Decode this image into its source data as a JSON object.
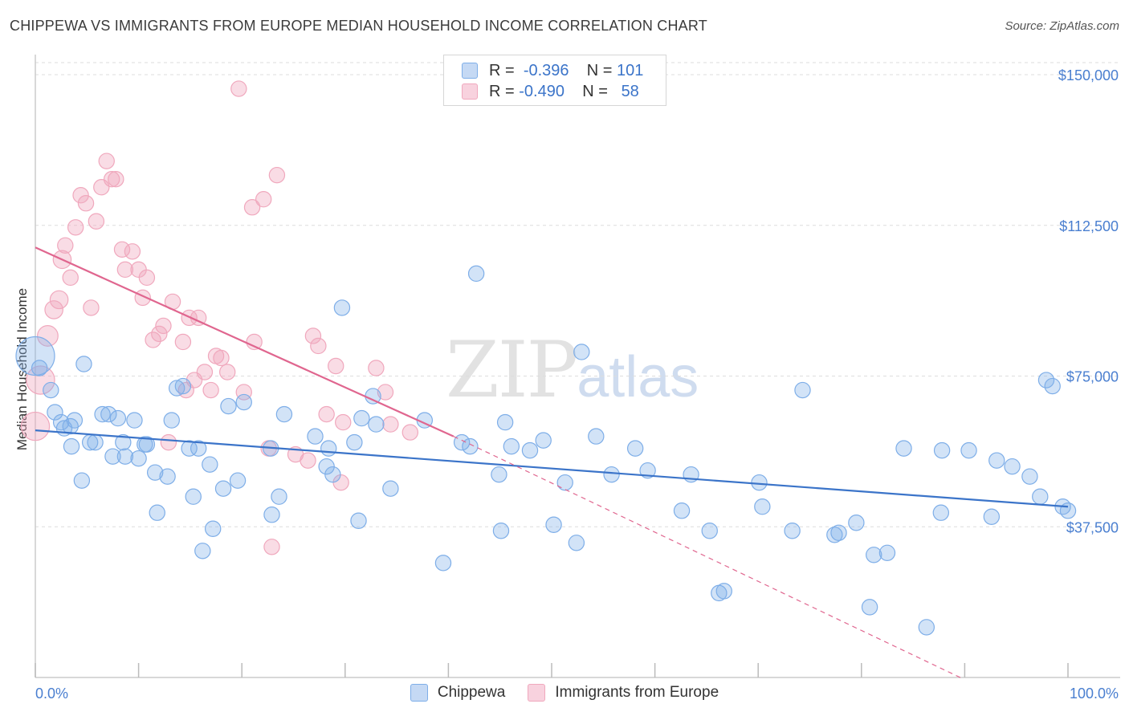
{
  "header": {
    "title": "CHIPPEWA VS IMMIGRANTS FROM EUROPE MEDIAN HOUSEHOLD INCOME CORRELATION CHART",
    "source": "Source: ZipAtlas.com"
  },
  "watermark": {
    "zip": "ZIP",
    "atlas": "atlas"
  },
  "legend": {
    "rows": [
      {
        "r_label": "R =",
        "r_value": "-0.396",
        "n_label": "N =",
        "n_value": "101",
        "color": "#7eaee8"
      },
      {
        "r_label": "R =",
        "r_value": "-0.490",
        "n_label": "N =",
        "n_value": "58",
        "color": "#f0a8bd"
      }
    ]
  },
  "bottom_legend": {
    "series1": "Chippewa",
    "series2": "Immigrants from Europe"
  },
  "chart_data": {
    "type": "scatter",
    "title": "CHIPPEWA VS IMMIGRANTS FROM EUROPE MEDIAN HOUSEHOLD INCOME CORRELATION CHART",
    "xlabel": "",
    "ylabel": "Median Household Income",
    "xlim": [
      0,
      100
    ],
    "ylim": [
      0,
      153000
    ],
    "x_tick_labels": [
      "0.0%",
      "100.0%"
    ],
    "y_ticks": [
      37500,
      75000,
      112500,
      150000
    ],
    "y_tick_labels": [
      "$37,500",
      "$75,000",
      "$112,500",
      "$150,000"
    ],
    "grid": true,
    "legend_position": "top-center",
    "series": [
      {
        "name": "Chippewa",
        "color": "#7eaee8",
        "line_color": "#3b74c9",
        "trend": {
          "x": [
            0,
            100
          ],
          "y": [
            61500,
            42500
          ]
        },
        "points": [
          [
            0,
            80000,
            30
          ],
          [
            0.4,
            77000,
            12
          ],
          [
            1.5,
            71500,
            12
          ],
          [
            1.9,
            66000,
            12
          ],
          [
            2.5,
            63500,
            12
          ],
          [
            2.8,
            62000,
            12
          ],
          [
            3.4,
            62500,
            12
          ],
          [
            3.5,
            57500,
            12
          ],
          [
            3.8,
            64000,
            12
          ],
          [
            4.5,
            49000,
            12
          ],
          [
            4.7,
            78000,
            12
          ],
          [
            5.3,
            58500,
            12
          ],
          [
            5.8,
            58500,
            12
          ],
          [
            6.5,
            65500,
            12
          ],
          [
            7.1,
            65500,
            12
          ],
          [
            7.5,
            55000,
            12
          ],
          [
            8,
            64500,
            12
          ],
          [
            8.5,
            58500,
            12
          ],
          [
            8.7,
            55000,
            12
          ],
          [
            9.6,
            64000,
            12
          ],
          [
            10,
            54500,
            12
          ],
          [
            10.6,
            58000,
            12
          ],
          [
            10.8,
            58000,
            12
          ],
          [
            11.6,
            51000,
            12
          ],
          [
            11.8,
            41000,
            12
          ],
          [
            12.8,
            50000,
            12
          ],
          [
            13.2,
            64000,
            12
          ],
          [
            13.7,
            72000,
            12
          ],
          [
            14.3,
            72500,
            12
          ],
          [
            14.9,
            57000,
            12
          ],
          [
            15.3,
            45000,
            12
          ],
          [
            15.8,
            57000,
            12
          ],
          [
            16.2,
            31500,
            12
          ],
          [
            16.9,
            53000,
            12
          ],
          [
            17.2,
            37000,
            12
          ],
          [
            18.2,
            47000,
            12
          ],
          [
            18.7,
            67500,
            12
          ],
          [
            19.6,
            49000,
            12
          ],
          [
            20.2,
            68500,
            12
          ],
          [
            22.8,
            57000,
            12
          ],
          [
            22.9,
            40500,
            12
          ],
          [
            23.6,
            45000,
            12
          ],
          [
            24.1,
            65500,
            12
          ],
          [
            27.1,
            60000,
            12
          ],
          [
            28.2,
            52500,
            12
          ],
          [
            28.4,
            57000,
            12
          ],
          [
            28.8,
            50500,
            12
          ],
          [
            29.7,
            92000,
            12
          ],
          [
            30.9,
            58500,
            12
          ],
          [
            31.3,
            39000,
            12
          ],
          [
            31.6,
            64500,
            12
          ],
          [
            32.7,
            70000,
            12
          ],
          [
            33,
            63000,
            12
          ],
          [
            34.4,
            47000,
            12
          ],
          [
            37.7,
            64000,
            12
          ],
          [
            39.5,
            28500,
            12
          ],
          [
            41.3,
            58500,
            12
          ],
          [
            42.1,
            57500,
            12
          ],
          [
            42.7,
            100500,
            12
          ],
          [
            44.9,
            50500,
            12
          ],
          [
            45.1,
            36500,
            12
          ],
          [
            45.5,
            63500,
            12
          ],
          [
            46.1,
            57500,
            12
          ],
          [
            47.9,
            56500,
            12
          ],
          [
            49.2,
            59000,
            12
          ],
          [
            50.2,
            38000,
            12
          ],
          [
            51.3,
            48500,
            12
          ],
          [
            52.4,
            33500,
            12
          ],
          [
            52.9,
            81000,
            12
          ],
          [
            54.3,
            60000,
            12
          ],
          [
            55.8,
            50500,
            12
          ],
          [
            58.1,
            57000,
            12
          ],
          [
            59.3,
            51500,
            12
          ],
          [
            62.6,
            41500,
            12
          ],
          [
            63.5,
            50500,
            12
          ],
          [
            65.3,
            36500,
            12
          ],
          [
            66.2,
            21000,
            12
          ],
          [
            66.7,
            21500,
            12
          ],
          [
            70.1,
            48500,
            12
          ],
          [
            70.4,
            42500,
            12
          ],
          [
            73.3,
            36500,
            12
          ],
          [
            74.3,
            71500,
            12
          ],
          [
            77.4,
            35500,
            12
          ],
          [
            77.8,
            36000,
            12
          ],
          [
            79.5,
            38500,
            12
          ],
          [
            80.8,
            17500,
            12
          ],
          [
            81.2,
            30500,
            12
          ],
          [
            82.5,
            31000,
            12
          ],
          [
            84.1,
            57000,
            12
          ],
          [
            86.3,
            12500,
            12
          ],
          [
            87.7,
            41000,
            12
          ],
          [
            87.8,
            56500,
            12
          ],
          [
            90.4,
            56500,
            12
          ],
          [
            92.6,
            40000,
            12
          ],
          [
            93.1,
            54000,
            12
          ],
          [
            94.6,
            52500,
            12
          ],
          [
            96.3,
            50000,
            12
          ],
          [
            97.3,
            45000,
            12
          ],
          [
            97.9,
            74000,
            12
          ],
          [
            98.5,
            72500,
            12
          ],
          [
            99.5,
            42500,
            12
          ],
          [
            100,
            41500,
            12
          ]
        ]
      },
      {
        "name": "Immigrants from Europe",
        "color": "#f0a8bd",
        "line_color": "#e0668f",
        "trend": {
          "x": [
            0,
            40.5
          ],
          "y": [
            107000,
            60000
          ]
        },
        "trend_dashed": {
          "x": [
            40.5,
            100
          ],
          "y": [
            60000,
            0
          ]
        },
        "points": [
          [
            0,
            62500,
            22
          ],
          [
            0.5,
            74000,
            22
          ],
          [
            1.2,
            85000,
            16
          ],
          [
            1.8,
            91500,
            14
          ],
          [
            2.3,
            94000,
            14
          ],
          [
            2.6,
            104000,
            14
          ],
          [
            2.9,
            107500,
            12
          ],
          [
            3.4,
            99500,
            12
          ],
          [
            3.9,
            112000,
            12
          ],
          [
            4.4,
            120000,
            12
          ],
          [
            4.9,
            118000,
            12
          ],
          [
            5.4,
            92000,
            12
          ],
          [
            5.9,
            113500,
            12
          ],
          [
            6.4,
            122000,
            12
          ],
          [
            6.9,
            128500,
            12
          ],
          [
            7.4,
            124000,
            12
          ],
          [
            7.8,
            124000,
            12
          ],
          [
            8.4,
            106500,
            12
          ],
          [
            8.7,
            101500,
            12
          ],
          [
            9.4,
            106000,
            12
          ],
          [
            10,
            101500,
            12
          ],
          [
            10.4,
            94500,
            12
          ],
          [
            10.8,
            99500,
            12
          ],
          [
            11.4,
            84000,
            12
          ],
          [
            12,
            85500,
            12
          ],
          [
            12.4,
            87500,
            12
          ],
          [
            12.9,
            58500,
            12
          ],
          [
            13.3,
            93500,
            12
          ],
          [
            14.3,
            83500,
            12
          ],
          [
            14.6,
            71500,
            12
          ],
          [
            14.9,
            89500,
            12
          ],
          [
            15.4,
            74000,
            12
          ],
          [
            15.8,
            89500,
            12
          ],
          [
            16.4,
            76000,
            12
          ],
          [
            17,
            71500,
            12
          ],
          [
            17.5,
            80000,
            12
          ],
          [
            18,
            79500,
            12
          ],
          [
            18.6,
            76000,
            12
          ],
          [
            19.7,
            146500,
            12
          ],
          [
            20.2,
            71000,
            12
          ],
          [
            21,
            117000,
            12
          ],
          [
            21.2,
            83500,
            12
          ],
          [
            22.1,
            119000,
            12
          ],
          [
            22.6,
            57000,
            12
          ],
          [
            22.9,
            32500,
            12
          ],
          [
            23.4,
            125000,
            12
          ],
          [
            25.2,
            55500,
            12
          ],
          [
            26.4,
            54000,
            12
          ],
          [
            26.9,
            85000,
            12
          ],
          [
            27.4,
            82500,
            12
          ],
          [
            28.2,
            65500,
            12
          ],
          [
            29.1,
            77500,
            12
          ],
          [
            29.6,
            48500,
            12
          ],
          [
            29.8,
            63500,
            12
          ],
          [
            33,
            77000,
            12
          ],
          [
            33.9,
            71000,
            12
          ],
          [
            34.4,
            63000,
            12
          ],
          [
            36.3,
            61000,
            12
          ]
        ]
      }
    ]
  }
}
